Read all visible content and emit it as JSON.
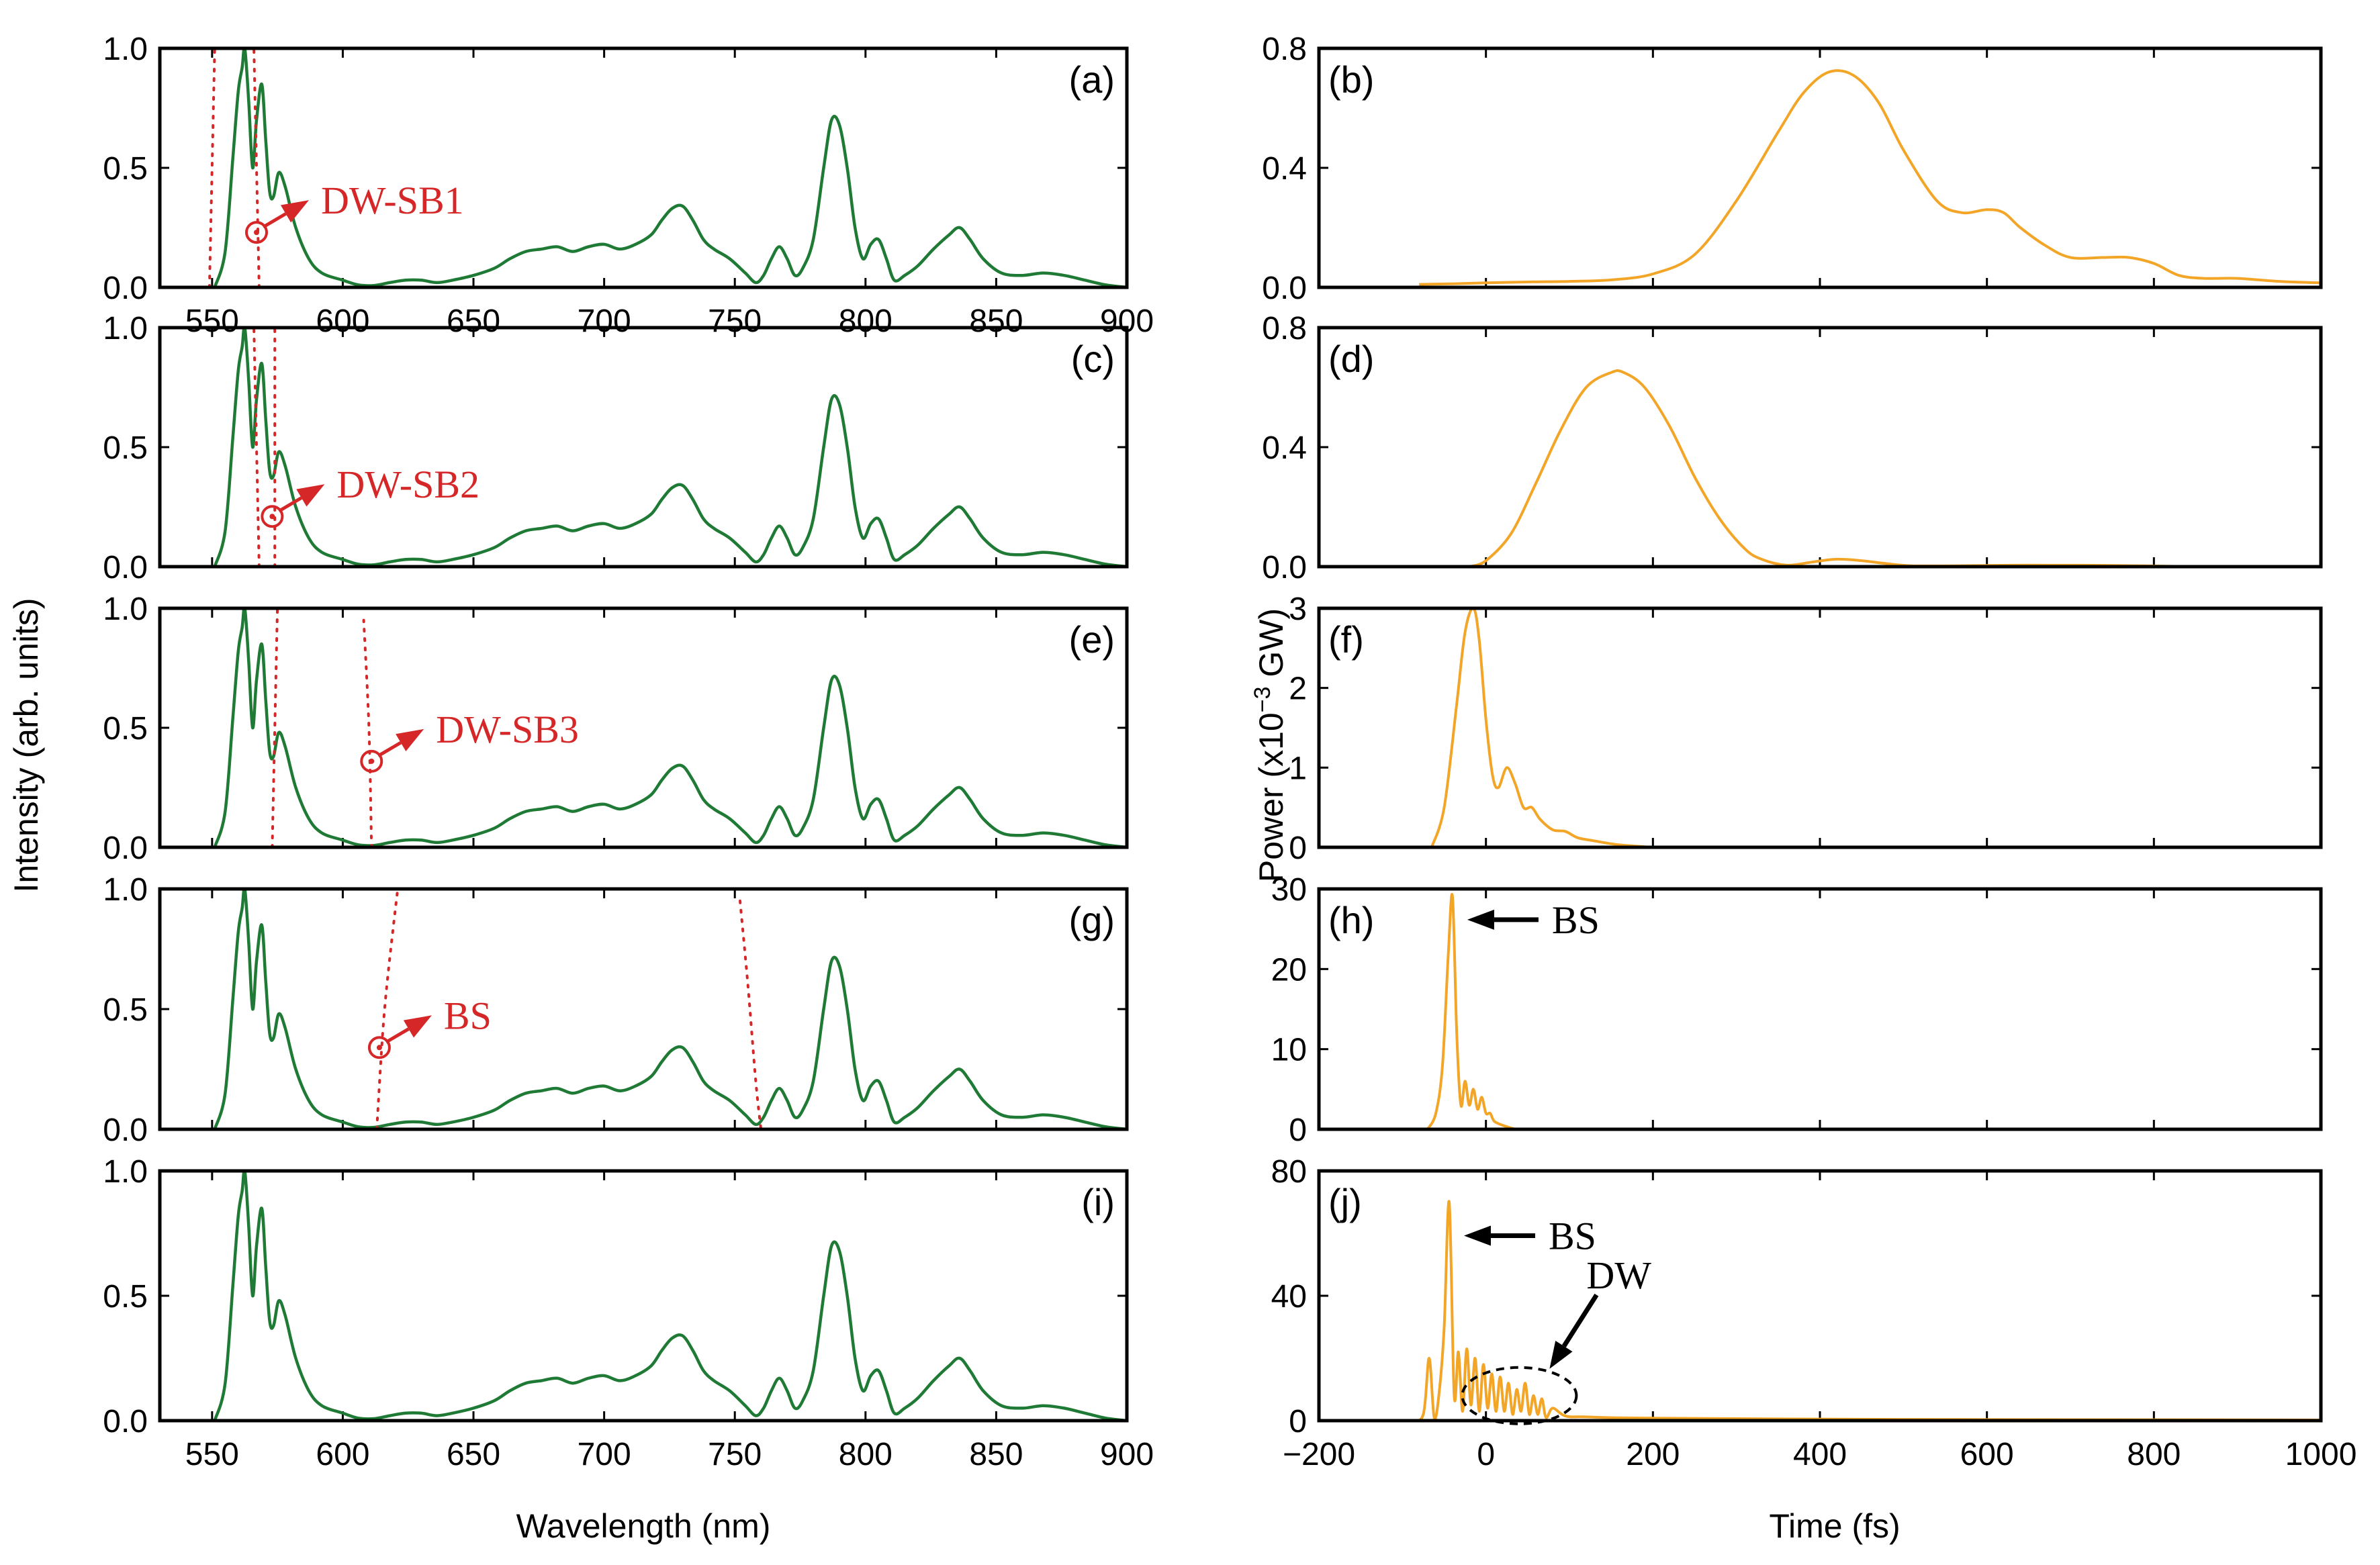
{
  "colors": {
    "spectrum": "#1e7a34",
    "power": "#f2a526",
    "guide": "#d62728",
    "annotation_red": "#d62728",
    "annotation_black": "#000000",
    "axes": "#000000"
  },
  "chart_data": [
    {
      "type": "line",
      "panel": "(a)",
      "xlabel": "Wavelength (nm)",
      "ylabel": "Intensity (arb. units)",
      "xlim": [
        530,
        900
      ],
      "ylim": [
        0,
        1.0
      ],
      "yticks": [
        "0.0",
        "0.5",
        "1.0"
      ],
      "xticks": [
        "550",
        "600",
        "650",
        "700",
        "750",
        "800",
        "850",
        "900"
      ],
      "series": [
        {
          "name": "Spectrum",
          "color": "#1e7a34"
        }
      ],
      "guide_lines": [
        {
          "name": "dotted-1",
          "points": [
            [
              549,
              0.0
            ],
            [
              551,
              1.0
            ]
          ]
        },
        {
          "name": "dotted-2",
          "points": [
            [
              568,
              0.0
            ],
            [
              566,
              1.0
            ]
          ]
        }
      ],
      "annotation": {
        "text": "DW-SB1",
        "at": [
          567,
          0.23
        ],
        "color": "#d62728"
      }
    },
    {
      "type": "line",
      "panel": "(b)",
      "xlabel": "Time (fs)",
      "ylabel": "Power (x10^-3 GW)",
      "xlim": [
        -200,
        1000
      ],
      "ylim": [
        0,
        0.8
      ],
      "yticks": [
        "0.0",
        "0.4",
        "0.8"
      ],
      "series": [
        {
          "name": "Power",
          "color": "#f2a526",
          "x": [
            -80,
            -40,
            0,
            50,
            100,
            150,
            200,
            250,
            300,
            350,
            380,
            410,
            440,
            470,
            500,
            540,
            570,
            600,
            620,
            640,
            670,
            700,
            740,
            770,
            800,
            830,
            860,
            900,
            950,
            1000
          ],
          "y": [
            0.01,
            0.012,
            0.015,
            0.018,
            0.02,
            0.025,
            0.045,
            0.11,
            0.29,
            0.52,
            0.65,
            0.72,
            0.71,
            0.62,
            0.46,
            0.29,
            0.25,
            0.26,
            0.25,
            0.2,
            0.14,
            0.1,
            0.1,
            0.1,
            0.08,
            0.04,
            0.03,
            0.03,
            0.02,
            0.015
          ]
        }
      ]
    },
    {
      "type": "line",
      "panel": "(c)",
      "xlim": [
        530,
        900
      ],
      "ylim": [
        0,
        1.0
      ],
      "yticks": [
        "0.0",
        "0.5",
        "1.0"
      ],
      "series": [
        {
          "name": "Spectrum",
          "color": "#1e7a34"
        }
      ],
      "guide_lines": [
        {
          "name": "dotted-1",
          "points": [
            [
              568,
              0.0
            ],
            [
              566,
              1.0
            ]
          ]
        },
        {
          "name": "dotted-2",
          "points": [
            [
              574,
              0.0
            ],
            [
              574,
              1.0
            ]
          ]
        }
      ],
      "annotation": {
        "text": "DW-SB2",
        "at": [
          573,
          0.21
        ],
        "color": "#d62728"
      }
    },
    {
      "type": "line",
      "panel": "(d)",
      "xlim": [
        -200,
        1000
      ],
      "ylim": [
        0,
        0.8
      ],
      "yticks": [
        "0.0",
        "0.4",
        "0.8"
      ],
      "series": [
        {
          "name": "Power",
          "color": "#f2a526",
          "x": [
            -20,
            0,
            30,
            60,
            90,
            120,
            150,
            165,
            190,
            220,
            250,
            280,
            310,
            330,
            360,
            390,
            420,
            450,
            480,
            510,
            560,
            650,
            750,
            850
          ],
          "y": [
            0.0,
            0.02,
            0.11,
            0.28,
            0.46,
            0.6,
            0.65,
            0.65,
            0.6,
            0.47,
            0.3,
            0.16,
            0.06,
            0.025,
            0.005,
            0.015,
            0.025,
            0.02,
            0.01,
            0.003,
            0.003,
            0.005,
            0.004,
            0.0
          ]
        }
      ]
    },
    {
      "type": "line",
      "panel": "(e)",
      "xlim": [
        530,
        900
      ],
      "ylim": [
        0,
        1.0
      ],
      "yticks": [
        "0.0",
        "0.5",
        "1.0"
      ],
      "series": [
        {
          "name": "Spectrum",
          "color": "#1e7a34"
        }
      ],
      "guide_lines": [
        {
          "name": "dotted-1",
          "points": [
            [
              573,
              0.0
            ],
            [
              575,
              1.0
            ]
          ]
        },
        {
          "name": "dotted-2",
          "points": [
            [
              611,
              0.0
            ],
            [
              610,
              0.5
            ],
            [
              608,
              0.95
            ]
          ]
        }
      ],
      "annotation": {
        "text": "DW-SB3",
        "at": [
          611,
          0.36
        ],
        "color": "#d62728"
      }
    },
    {
      "type": "line",
      "panel": "(f)",
      "xlim": [
        -200,
        1000
      ],
      "ylim": [
        0,
        3
      ],
      "yticks": [
        "0",
        "1",
        "2",
        "3"
      ],
      "series": [
        {
          "name": "Power",
          "color": "#f2a526",
          "x": [
            -65,
            -50,
            -35,
            -25,
            -15,
            -8,
            0,
            8,
            15,
            25,
            35,
            45,
            55,
            65,
            80,
            95,
            110,
            130,
            160,
            200
          ],
          "y": [
            0,
            0.5,
            1.8,
            2.7,
            3.0,
            2.6,
            1.6,
            0.9,
            0.75,
            1.0,
            0.8,
            0.5,
            0.5,
            0.35,
            0.22,
            0.2,
            0.12,
            0.08,
            0.03,
            0
          ]
        }
      ]
    },
    {
      "type": "line",
      "panel": "(g)",
      "xlim": [
        530,
        900
      ],
      "ylim": [
        0,
        1.0
      ],
      "yticks": [
        "0.0",
        "0.5",
        "1.0"
      ],
      "series": [
        {
          "name": "Spectrum",
          "color": "#1e7a34"
        }
      ],
      "guide_lines": [
        {
          "name": "dotted-1",
          "points": [
            [
              613,
              0.0
            ],
            [
              616,
              0.5
            ],
            [
              621,
              1.0
            ]
          ]
        },
        {
          "name": "dotted-2",
          "points": [
            [
              752,
              0.95
            ],
            [
              755,
              0.6
            ],
            [
              758,
              0.2
            ],
            [
              760,
              0.0
            ]
          ]
        }
      ],
      "annotation": {
        "text": "BS",
        "at": [
          614,
          0.34
        ],
        "color": "#d62728"
      }
    },
    {
      "type": "line",
      "panel": "(h)",
      "xlim": [
        -200,
        1000
      ],
      "ylim": [
        0,
        30
      ],
      "yticks": [
        "0",
        "10",
        "20",
        "30"
      ],
      "series": [
        {
          "name": "Power",
          "color": "#f2a526",
          "x": [
            -70,
            -60,
            -52,
            -45,
            -40,
            -35,
            -30,
            -25,
            -20,
            -15,
            -10,
            -5,
            0,
            5,
            10,
            20,
            35
          ],
          "y": [
            0,
            2,
            8,
            22,
            29,
            12,
            3,
            6,
            3,
            5,
            2.5,
            4,
            2,
            2,
            1,
            0.5,
            0
          ]
        }
      ],
      "annotation": {
        "text": "BS",
        "color": "#000000"
      }
    },
    {
      "type": "line",
      "panel": "(i)",
      "xlabel": "Wavelength (nm)",
      "xlim": [
        530,
        900
      ],
      "ylim": [
        0,
        1.0
      ],
      "yticks": [
        "0.0",
        "0.5",
        "1.0"
      ],
      "xticks": [
        "550",
        "600",
        "650",
        "700",
        "750",
        "800",
        "850",
        "900"
      ],
      "series": [
        {
          "name": "Spectrum",
          "color": "#1e7a34"
        }
      ]
    },
    {
      "type": "line",
      "panel": "(j)",
      "xlabel": "Time (fs)",
      "xlim": [
        -200,
        1000
      ],
      "ylim": [
        0,
        80
      ],
      "yticks": [
        "0",
        "40",
        "80"
      ],
      "xticks": [
        "-200",
        "0",
        "200",
        "400",
        "600",
        "800",
        "1000"
      ],
      "series": [
        {
          "name": "Power",
          "color": "#f2a526",
          "x": [
            -90,
            -75,
            -68,
            -62,
            -56,
            -50,
            -44,
            -38,
            -33,
            -28,
            -23,
            -18,
            -13,
            -8,
            -3,
            2,
            7,
            12,
            17,
            22,
            27,
            32,
            37,
            42,
            47,
            52,
            57,
            62,
            67,
            72,
            80,
            95,
            120,
            200,
            500,
            800,
            1000
          ],
          "y": [
            0,
            2,
            20,
            1,
            9,
            30,
            70,
            8,
            22,
            3,
            23,
            5,
            20,
            3,
            18,
            4,
            15,
            3,
            14,
            3,
            12,
            2,
            10,
            3,
            12,
            2,
            8,
            2,
            7,
            1,
            4,
            1.5,
            1.2,
            0.8,
            0.4,
            0.3,
            0.2
          ]
        }
      ],
      "annotations": [
        {
          "text": "BS",
          "color": "#000000"
        },
        {
          "text": "DW",
          "color": "#000000"
        }
      ]
    }
  ],
  "spectrum_profile": {
    "x": [
      551,
      555,
      558,
      560,
      561.5,
      562.5,
      564,
      565.5,
      567,
      569,
      570.5,
      572,
      573.5,
      575.5,
      578,
      582,
      587,
      592,
      600,
      606,
      612,
      618,
      624,
      630,
      636,
      642,
      650,
      658,
      664,
      670,
      676,
      682,
      688,
      694,
      700,
      706,
      712,
      718,
      722,
      726,
      730,
      734,
      738,
      742,
      748,
      754,
      758,
      761,
      764,
      767,
      770,
      773,
      776,
      780,
      784,
      787,
      790,
      793,
      796,
      799,
      802,
      805,
      808,
      811,
      815,
      820,
      826,
      832,
      836,
      840,
      845,
      852,
      860,
      868,
      876,
      884,
      892,
      900
    ],
    "y": [
      0.0,
      0.15,
      0.55,
      0.82,
      0.92,
      1.0,
      0.78,
      0.5,
      0.7,
      0.85,
      0.62,
      0.4,
      0.38,
      0.48,
      0.42,
      0.25,
      0.12,
      0.06,
      0.03,
      0.01,
      0.008,
      0.02,
      0.03,
      0.03,
      0.02,
      0.03,
      0.05,
      0.08,
      0.12,
      0.15,
      0.16,
      0.17,
      0.15,
      0.17,
      0.18,
      0.16,
      0.18,
      0.22,
      0.28,
      0.33,
      0.34,
      0.28,
      0.2,
      0.16,
      0.12,
      0.06,
      0.02,
      0.05,
      0.12,
      0.17,
      0.12,
      0.05,
      0.08,
      0.2,
      0.5,
      0.7,
      0.68,
      0.5,
      0.25,
      0.12,
      0.18,
      0.2,
      0.12,
      0.03,
      0.05,
      0.09,
      0.16,
      0.22,
      0.25,
      0.2,
      0.12,
      0.06,
      0.05,
      0.06,
      0.05,
      0.03,
      0.01,
      0.0
    ]
  }
}
